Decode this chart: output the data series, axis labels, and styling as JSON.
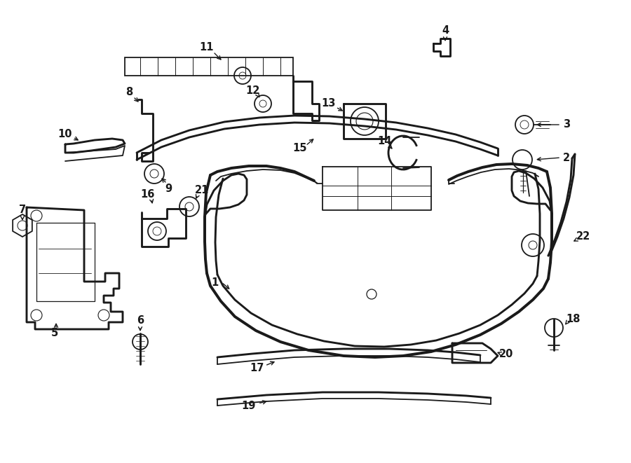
{
  "bg_color": "#ffffff",
  "line_color": "#1a1a1a",
  "lw": 1.3,
  "fig_width": 9.0,
  "fig_height": 6.61,
  "label_fontsize": 10.5
}
